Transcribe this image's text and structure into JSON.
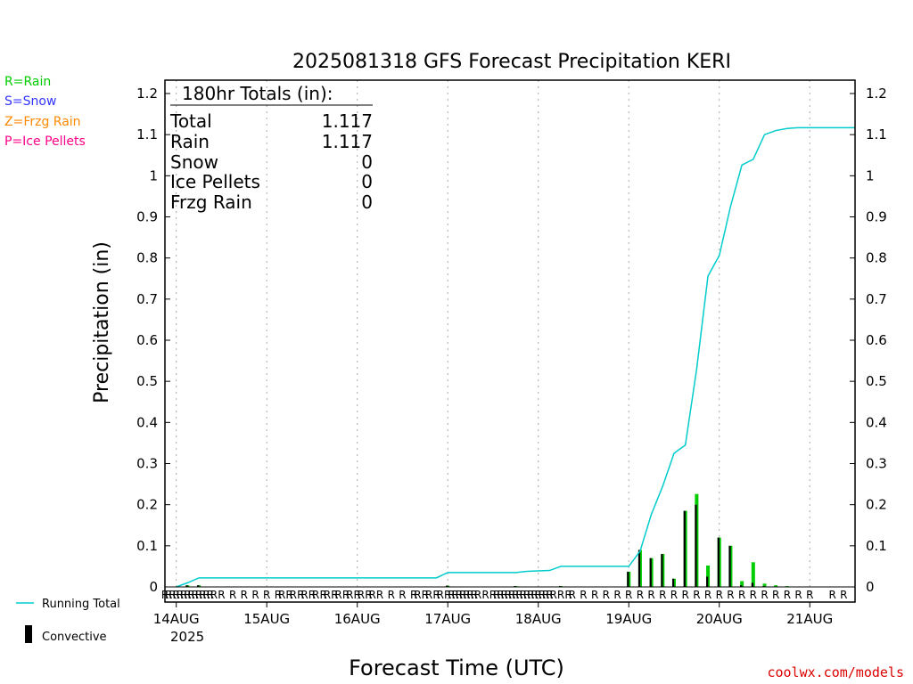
{
  "chart_data": {
    "type": "bar",
    "title": "2025081318 GFS Forecast Precipitation KERI",
    "xlabel": "Forecast Time (UTC)",
    "ylabel": "Precipitation (in)",
    "ylim": [
      0,
      1.2
    ],
    "yticks": [
      "0",
      "0.1",
      "0.2",
      "0.3",
      "0.4",
      "0.5",
      "0.6",
      "0.7",
      "0.8",
      "0.9",
      "1",
      "1.1",
      "1.2"
    ],
    "xticks": [
      "14AUG",
      "15AUG",
      "16AUG",
      "17AUG",
      "18AUG",
      "19AUG",
      "20AUG",
      "21AUG"
    ],
    "year_label": "2025",
    "xlim_hours": [
      -3,
      180
    ],
    "grid": "vertical dotted at day boundaries",
    "credit": "coolwx.com/models",
    "precip_type_legend": [
      {
        "label": "R=Rain",
        "color": "#00cc00"
      },
      {
        "label": "S=Snow",
        "color": "#3333ff"
      },
      {
        "label": "Z=Frzg Rain",
        "color": "#ff8800"
      },
      {
        "label": "P=Ice Pellets",
        "color": "#ff0088"
      }
    ],
    "series_legend": [
      {
        "label": "Running Total",
        "color": "#00cccc"
      },
      {
        "label": "Convective",
        "color": "#000000"
      }
    ],
    "totals": {
      "header": "180hr Totals (in):",
      "rows": [
        {
          "label": "Total",
          "value": "1.117"
        },
        {
          "label": "Rain",
          "value": "1.117"
        },
        {
          "label": "Snow",
          "value": "0"
        },
        {
          "label": "Ice Pellets",
          "value": "0"
        },
        {
          "label": "Frzg Rain",
          "value": "0"
        }
      ]
    },
    "running_total": {
      "name": "Running Total",
      "hours": [
        0,
        3,
        6,
        24,
        69,
        72,
        90,
        93,
        99,
        102,
        120,
        123,
        126,
        129,
        132,
        135,
        138,
        141,
        144,
        147,
        150,
        153,
        156,
        159,
        162,
        165,
        168,
        171,
        174,
        180
      ],
      "values": [
        0,
        0.01,
        0.022,
        0.022,
        0.022,
        0.035,
        0.035,
        0.038,
        0.04,
        0.05,
        0.05,
        0.087,
        0.177,
        0.245,
        0.325,
        0.345,
        0.53,
        0.756,
        0.806,
        0.926,
        1.026,
        1.04,
        1.1,
        1.11,
        1.115,
        1.117,
        1.117,
        1.117,
        1.117,
        1.117
      ]
    },
    "bars_3hr": {
      "hours": [
        3,
        6,
        72,
        90,
        102,
        120,
        123,
        126,
        129,
        132,
        135,
        138,
        141,
        144,
        147,
        150,
        153,
        156,
        159,
        162,
        165
      ],
      "total": [
        0.004,
        0.004,
        0.003,
        0.002,
        0.002,
        0.037,
        0.09,
        0.07,
        0.08,
        0.02,
        0.185,
        0.226,
        0.052,
        0.12,
        0.1,
        0.014,
        0.06,
        0.008,
        0.004,
        0.002,
        0.001
      ],
      "convective": [
        0.004,
        0.004,
        0.003,
        0.002,
        0.002,
        0.037,
        0.09,
        0.07,
        0.08,
        0.02,
        0.185,
        0.2,
        0.025,
        0.12,
        0.1,
        0.004,
        0.01,
        0.002,
        0,
        0,
        0
      ]
    },
    "precip_type_markers": {
      "symbol": "R",
      "hours": [
        -3,
        -2,
        -1,
        0,
        1,
        2,
        3,
        4,
        5,
        6,
        7,
        8,
        9,
        10,
        12,
        15,
        18,
        21,
        24,
        27,
        28,
        30,
        31,
        33,
        34,
        36,
        37,
        39,
        40,
        42,
        43,
        45,
        46,
        48,
        49,
        51,
        52,
        54,
        57,
        60,
        63,
        64,
        66,
        67,
        69,
        70,
        72,
        73,
        74,
        75,
        76,
        77,
        78,
        79,
        80,
        82,
        84,
        85,
        86,
        87,
        88,
        89,
        90,
        91,
        92,
        93,
        94,
        95,
        96,
        97,
        98,
        99,
        100,
        102,
        104,
        105,
        108,
        111,
        114,
        117,
        120,
        123,
        126,
        129,
        132,
        135,
        138,
        141,
        144,
        147,
        150,
        153,
        156,
        159,
        162,
        165,
        168,
        174,
        177
      ]
    }
  }
}
